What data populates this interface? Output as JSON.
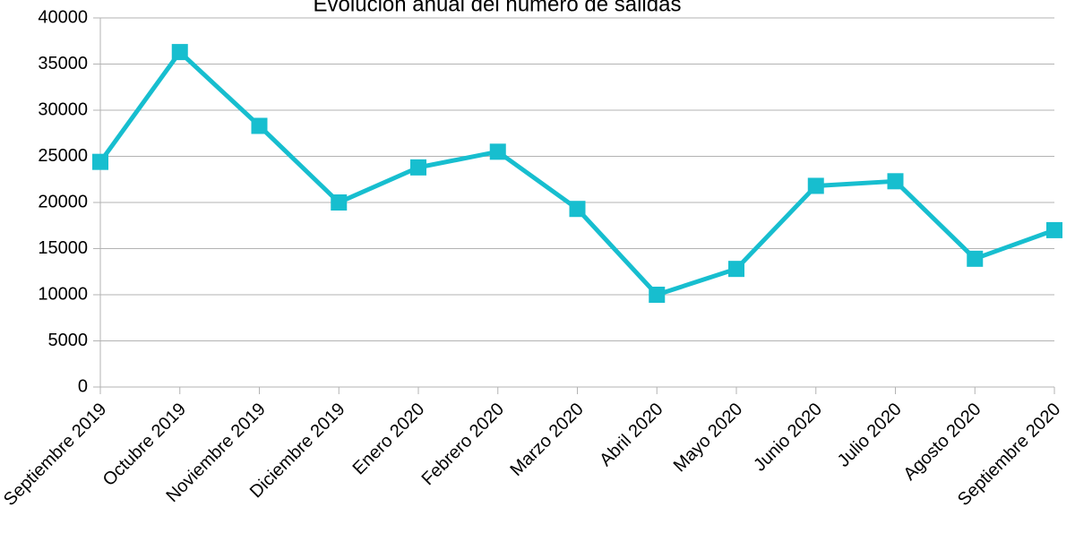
{
  "chart_data": {
    "type": "line",
    "title": "Evolución anual del número de salidas",
    "categories": [
      "Septiembre 2019",
      "Octubre 2019",
      "Noviembre 2019",
      "Diciembre 2019",
      "Enero 2020",
      "Febrero 2020",
      "Marzo 2020",
      "Abril 2020",
      "Mayo 2020",
      "Junio 2020",
      "Julio 2020",
      "Agosto 2020",
      "Septiembre 2020"
    ],
    "values": [
      24400,
      36300,
      28300,
      20000,
      23800,
      25500,
      19300,
      10000,
      12800,
      21800,
      22300,
      13900,
      17000
    ],
    "color": "#17becf",
    "ylim": [
      0,
      40000
    ],
    "yticks": [
      0,
      5000,
      10000,
      15000,
      20000,
      25000,
      30000,
      35000,
      40000
    ],
    "grid": true
  }
}
